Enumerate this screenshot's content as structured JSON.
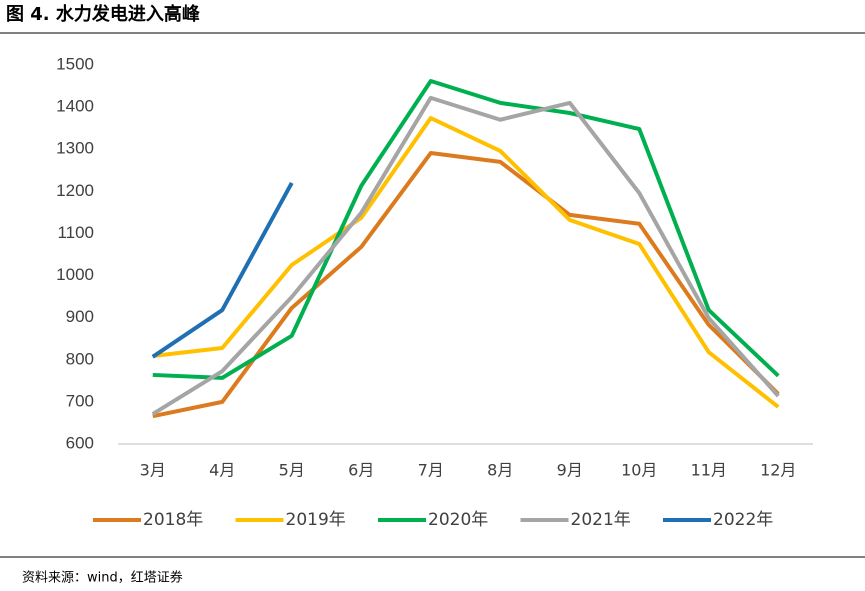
{
  "chart_data": {
    "type": "line",
    "title": "图 4. 水力发电进入高峰",
    "source": "资料来源：wind，红塔证券",
    "categories": [
      "3月",
      "4月",
      "5月",
      "6月",
      "7月",
      "8月",
      "9月",
      "10月",
      "11月",
      "12月"
    ],
    "series": [
      {
        "name": "2018年",
        "color": "#dc7a1e",
        "values": [
          666,
          700,
          923,
          1068,
          1291,
          1270,
          1144,
          1123,
          883,
          719
        ]
      },
      {
        "name": "2019年",
        "color": "#ffc000",
        "values": [
          809,
          828,
          1025,
          1137,
          1374,
          1296,
          1132,
          1075,
          818,
          688
        ]
      },
      {
        "name": "2020年",
        "color": "#00b050",
        "values": [
          764,
          757,
          857,
          1213,
          1462,
          1410,
          1386,
          1348,
          918,
          762
        ]
      },
      {
        "name": "2021年",
        "color": "#a5a5a5",
        "values": [
          671,
          773,
          949,
          1149,
          1422,
          1370,
          1410,
          1196,
          899,
          714
        ]
      },
      {
        "name": "2022年",
        "color": "#1f6fb4",
        "values": [
          807,
          918,
          1220,
          null,
          null,
          null,
          null,
          null,
          null,
          null
        ]
      }
    ],
    "ylim": [
      600,
      1500
    ],
    "yticks": [
      600,
      700,
      800,
      900,
      1000,
      1100,
      1200,
      1300,
      1400,
      1500
    ],
    "grid": false,
    "legend": "bottom"
  }
}
